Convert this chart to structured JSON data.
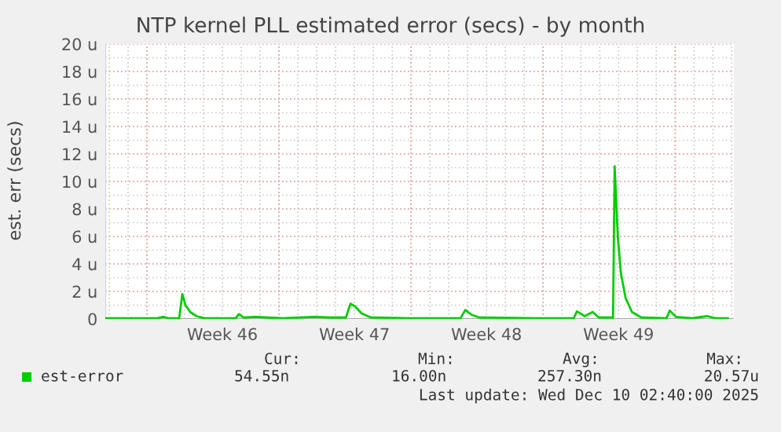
{
  "chart_data": {
    "type": "line",
    "title": "NTP kernel PLL estimated error (secs) - by month",
    "ylabel": "est. err (secs)",
    "x": [
      "2025-11-06T19:00",
      "2025-11-09T13:00",
      "2025-11-09T21:00",
      "2025-11-10T03:00",
      "2025-11-10T17:00",
      "2025-11-10T21:00",
      "2025-11-11T01:00",
      "2025-11-11T07:00",
      "2025-11-11T15:00",
      "2025-11-12T01:00",
      "2025-11-13T17:00",
      "2025-11-13T21:00",
      "2025-11-14T03:00",
      "2025-11-14T19:00",
      "2025-11-15T09:00",
      "2025-11-16T05:00",
      "2025-11-17T21:00",
      "2025-11-18T17:00",
      "2025-11-19T13:00",
      "2025-11-19T19:00",
      "2025-11-20T01:00",
      "2025-11-20T09:00",
      "2025-11-20T21:00",
      "2025-11-22T21:00",
      "2025-11-25T15:00",
      "2025-11-25T21:00",
      "2025-11-26T05:00",
      "2025-11-26T15:00",
      "2025-11-29T13:00",
      "2025-12-01T15:00",
      "2025-12-01T19:00",
      "2025-12-02T05:00",
      "2025-12-02T15:00",
      "2025-12-02T23:00",
      "2025-12-03T17:00",
      "2025-12-03T19:00",
      "2025-12-03T23:00",
      "2025-12-04T03:00",
      "2025-12-04T09:00",
      "2025-12-04T17:00",
      "2025-12-05T05:00",
      "2025-12-06T13:00",
      "2025-12-06T17:00",
      "2025-12-07T01:00",
      "2025-12-07T21:00",
      "2025-12-08T17:00",
      "2025-12-09T03:00",
      "2025-12-09T19:00"
    ],
    "series": [
      {
        "name": "est-error",
        "color": "#00cc00",
        "values": [
          0.05,
          0.05,
          0.15,
          0.05,
          0.05,
          1.8,
          1.0,
          0.5,
          0.2,
          0.05,
          0.05,
          0.35,
          0.1,
          0.15,
          0.1,
          0.05,
          0.15,
          0.1,
          0.1,
          1.1,
          0.9,
          0.4,
          0.1,
          0.05,
          0.05,
          0.65,
          0.3,
          0.1,
          0.05,
          0.05,
          0.55,
          0.2,
          0.5,
          0.1,
          0.1,
          11.1,
          6.0,
          3.3,
          1.5,
          0.5,
          0.1,
          0.05,
          0.6,
          0.15,
          0.05,
          0.2,
          0.05,
          0.05
        ]
      }
    ],
    "xlim": [
      "2025-11-06T19:00",
      "2025-12-10T02:40"
    ],
    "xticks": [
      {
        "value": "2025-11-09",
        "label": null
      },
      {
        "value": "2025-11-13",
        "label": "Week 46"
      },
      {
        "value": "2025-11-16",
        "label": null
      },
      {
        "value": "2025-11-20",
        "label": "Week 47"
      },
      {
        "value": "2025-11-23",
        "label": null
      },
      {
        "value": "2025-11-27",
        "label": "Week 48"
      },
      {
        "value": "2025-11-30",
        "label": null
      },
      {
        "value": "2025-12-04",
        "label": "Week 49"
      },
      {
        "value": "2025-12-07",
        "label": null
      }
    ],
    "ylim": [
      0,
      20
    ],
    "yticks": [
      0,
      {
        "value": 2,
        "label": "2 u"
      },
      {
        "value": 4,
        "label": "4 u"
      },
      {
        "value": 6,
        "label": "6 u"
      },
      {
        "value": 8,
        "label": "8 u"
      },
      {
        "value": 10,
        "label": "10 u"
      },
      {
        "value": 12,
        "label": "12 u"
      },
      {
        "value": 14,
        "label": "14 u"
      },
      {
        "value": 16,
        "label": "16 u"
      },
      {
        "value": 18,
        "label": "18 u"
      },
      {
        "value": 20,
        "label": "20 u"
      }
    ],
    "grid": true,
    "legend": "bottom",
    "marker": "none",
    "line_style": "solid",
    "annotations": [
      "Cur:",
      "Min:",
      "Avg:",
      "Max:",
      "54.55n",
      "16.00n",
      "257.30n",
      "20.57u",
      "Last update: Wed Dec 10 02:40:00 2025"
    ]
  }
}
